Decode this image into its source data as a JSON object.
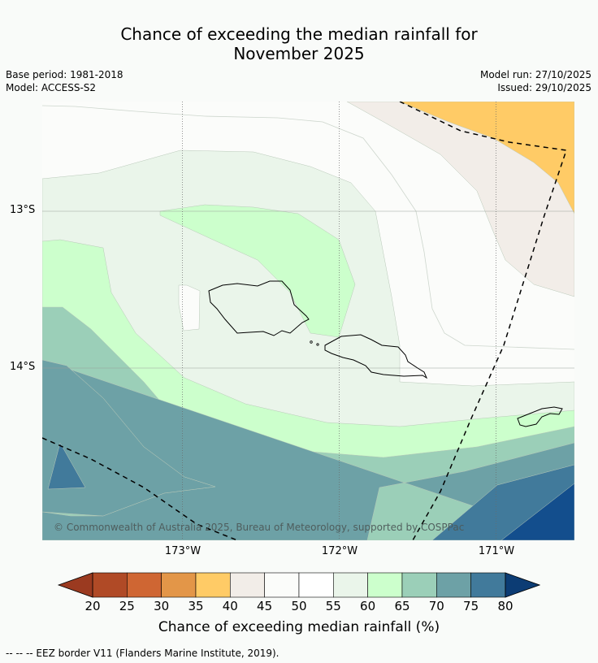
{
  "title_line1": "Chance of exceeding the median rainfall for",
  "title_line2": "November 2025",
  "base_period": "Base period: 1981-2018",
  "model": "Model: ACCESS-S2",
  "model_run": "Model run: 27/10/2025",
  "issued": "Issued: 29/10/2025",
  "copyright": "© Commonwealth of Australia 2025, Bureau of Meteorology, supported by COSPPac",
  "lat_labels": [
    "13°S",
    "14°S"
  ],
  "lon_labels": [
    "173°W",
    "172°W",
    "171°W"
  ],
  "colorbar": {
    "ticks": [
      "20",
      "25",
      "30",
      "35",
      "40",
      "45",
      "50",
      "55",
      "60",
      "65",
      "70",
      "75",
      "80"
    ],
    "colors": [
      "#b04a26",
      "#cf6633",
      "#e39648",
      "#ffcb66",
      "#f2ede8",
      "#fbfcfa",
      "#ffffff",
      "#eaf5ea",
      "#ccffcc",
      "#9bcfb8",
      "#6da1a6",
      "#417a9b",
      "#134e8d"
    ],
    "under_color": "#9b3a20",
    "over_color": "#0c3c74",
    "title": "Chance of exceeding median rainfall (%)"
  },
  "footnote": "--  --  -- EEZ border V11 (Flanders Marine Institute, 2019).",
  "map_colors": {
    "c50": "#fbfcfa",
    "c55": "#eaf5ea",
    "c60": "#ccffcc",
    "c65": "#9bcfb8",
    "c70": "#6da1a6",
    "c75": "#417a9b",
    "c80": "#134e8d",
    "c40": "#f2ede8",
    "c35": "#ffcb66"
  }
}
